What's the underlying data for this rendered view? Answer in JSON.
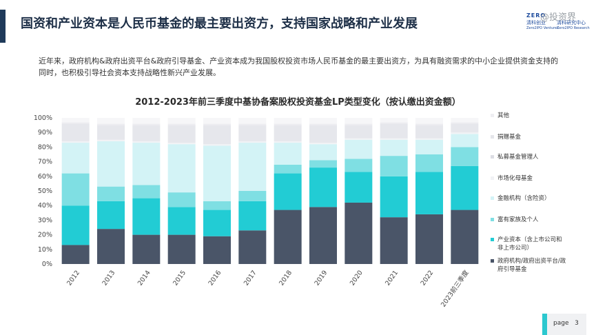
{
  "header": {
    "title": "国资和产业资本是人民币基金的最主要出资方，支持国家战略和产业发展",
    "watermark": "@投资界",
    "logo": {
      "line1": "ZERO",
      "line2": "清科创业",
      "line3": "Zero2IPO Ventures",
      "line4": "清科研究中心",
      "line5": "Zero2IPO Research"
    }
  },
  "intro_text": "近年来，政府机构&政府出资平台&政府引导基金、产业资本成为我国股权投资市场人民币基金的最主要出资方，为具有融资需求的中小企业提供资金支持的同时，也积极引导社会资本支持战略性新兴产业发展。",
  "chart_data": {
    "type": "bar",
    "stacked": true,
    "title": "2012-2023年前三季度中基协备案股权投资基金LP类型变化（按认缴出资金额）",
    "categories": [
      "2012",
      "2013",
      "2014",
      "2015",
      "2016",
      "2017",
      "2018",
      "2019",
      "2020",
      "2021",
      "2022",
      "2023前三季度"
    ],
    "y_ticks": [
      "0%",
      "10%",
      "20%",
      "30%",
      "40%",
      "50%",
      "60%",
      "70%",
      "80%",
      "90%",
      "100%"
    ],
    "ylim": [
      0,
      100
    ],
    "legend_position": "right",
    "series": [
      {
        "name": "政府机构/政府出资平台/政府引导基金",
        "color": "#4a5568",
        "values": [
          13,
          24,
          20,
          20,
          19,
          23,
          37,
          39,
          42,
          32,
          34,
          37
        ]
      },
      {
        "name": "产业资本（含上市公司和非上市公司）",
        "color": "#22ccd4",
        "values": [
          27,
          19,
          25,
          19,
          18,
          20,
          25,
          27,
          21,
          28,
          29,
          30
        ]
      },
      {
        "name": "富有家族及个人",
        "color": "#7fdfe3",
        "values": [
          22,
          10,
          9,
          10,
          6,
          7,
          6,
          5,
          9,
          14,
          12,
          13
        ]
      },
      {
        "name": "金融机构（含险资）",
        "color": "#d3f3f6",
        "values": [
          21,
          31,
          29,
          33,
          38,
          33,
          15,
          11,
          13,
          11,
          10,
          9
        ]
      },
      {
        "name": "市场化母基金",
        "color": "#f1f2f5",
        "values": [
          1,
          1,
          1,
          1,
          1,
          1,
          1,
          1,
          1,
          1,
          1,
          1
        ]
      },
      {
        "name": "私募基金管理人",
        "color": "#e6e7ec",
        "values": [
          12,
          10,
          11,
          12,
          13,
          11,
          11,
          12,
          9,
          10,
          9,
          6
        ]
      },
      {
        "name": "捐赠基金",
        "color": "#ededf1",
        "values": [
          1,
          1,
          1,
          1,
          1,
          1,
          1,
          1,
          1,
          1,
          1,
          1
        ]
      },
      {
        "name": "其他",
        "color": "#f6f6f8",
        "values": [
          3,
          4,
          4,
          4,
          4,
          4,
          4,
          4,
          4,
          3,
          4,
          3
        ]
      }
    ],
    "legend": [
      {
        "label": "其他",
        "color": "#eeeef2"
      },
      {
        "label": "捐赠基金",
        "color": "#e4e5ea"
      },
      {
        "label": "私募基金管理人",
        "color": "#dcdde3"
      },
      {
        "label": "市场化母基金",
        "color": "#f1f2f5"
      },
      {
        "label": "金融机构（含险资）",
        "color": "#d3f3f6"
      },
      {
        "label": "富有家族及个人",
        "color": "#7fdfe3"
      },
      {
        "label": "产业资本（含上市公司和非上市公司）",
        "color": "#22ccd4"
      },
      {
        "label": "政府机构/政府出资平台/政府引导基金",
        "color": "#4a5568"
      }
    ]
  },
  "footer": {
    "page_label": "page",
    "page_number": "3"
  },
  "colors": {
    "accent": "#2cc8cf",
    "brand": "#1f3a5a"
  }
}
